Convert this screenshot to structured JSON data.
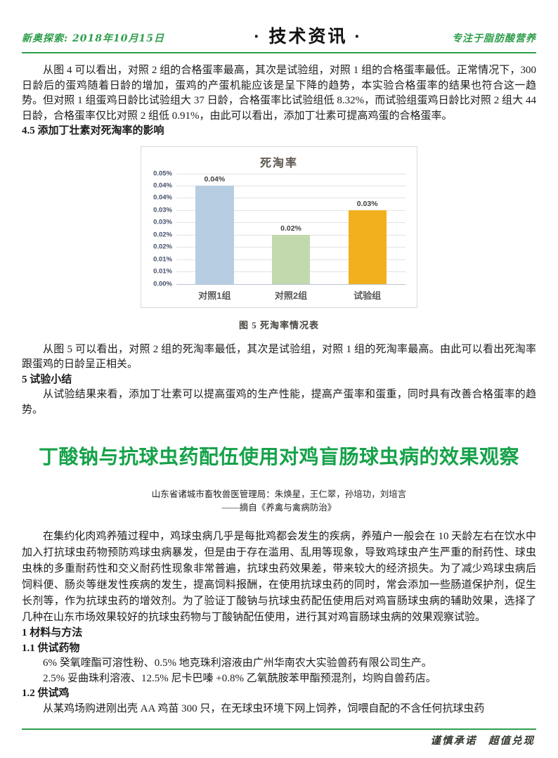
{
  "header": {
    "left": "新奥探索: 2018年10月15日",
    "center": "· 技术资讯 ·",
    "right": "专注于脂肪酸营养"
  },
  "article1": {
    "para_fig4": "从图 4 可以看出，对照 2 组的合格蛋率最高，其次是试验组，对照 1 组的合格蛋率最低。正常情况下，300 日龄后的蛋鸡随着日龄的增加，蛋鸡的产蛋机能应该是呈下降的趋势，本实验合格蛋率的结果也符合这一趋势。但对照 1 组蛋鸡日龄比试验组大 37 日龄，合格蛋率比试验组低 8.32%，而试验组蛋鸡日龄比对照 2 组大 44 日龄，合格蛋率仅比对照 2 组低 0.91%，由此可以看出，添加丁壮素可提高鸡蛋的合格蛋率。",
    "heading_45": "4.5 添加丁壮素对死淘率的影响",
    "caption_fig5": "图 5 死淘率情况表",
    "para_fig5": "从图 5 可以看出，对照 2 组的死淘率最低，其次是试验组，对照 1 组的死淘率最高。由此可以看出死淘率跟蛋鸡的日龄呈正相关。",
    "heading_5": "5 试验小结",
    "para_summary": "从试验结果来看，添加丁壮素可以提高蛋鸡的生产性能，提高产蛋率和蛋重，同时具有改善合格蛋率的趋势。"
  },
  "chart_data": {
    "type": "bar",
    "title": "死淘率",
    "categories": [
      "对照1组",
      "对照2组",
      "试验组"
    ],
    "values": [
      0.04,
      0.02,
      0.03
    ],
    "value_labels": [
      "0.04%",
      "0.02%",
      "0.03%"
    ],
    "bar_colors": [
      "#b7cde2",
      "#c2d8ad",
      "#f2b01e"
    ],
    "y_ticks_top_to_bottom": [
      "0.05%",
      "0.04%",
      "0.04%",
      "0.03%",
      "0.03%",
      "0.02%",
      "0.02%",
      "0.01%",
      "0.01%",
      "0.00%"
    ],
    "ylim": [
      0,
      0.045
    ],
    "grid": true,
    "legend": "none",
    "xlabel": "",
    "ylabel": ""
  },
  "article2": {
    "title": "丁酸钠与抗球虫药配伍使用对鸡盲肠球虫病的效果观察",
    "byline1": "山东省诸城市畜牧兽医管理局：朱焕星，王仁翠，孙培功，刘培言",
    "byline2": "——摘自《养禽与禽病防治》",
    "intro": "在集约化肉鸡养殖过程中，鸡球虫病几乎是每批鸡都会发生的疾病，养殖户一般会在 10 天龄左右在饮水中加入打抗球虫药物预防鸡球虫病暴发，但是由于存在滥用、乱用等现象，导致鸡球虫产生严重的耐药性、球虫虫株的多重耐药性和交义耐药性现象非常普遍，抗球虫药效果差，带来较大的经济损失。为了减少鸡球虫病后饲料便、肠炎等继发性疾病的发生，提高饲料报酬，在使用抗球虫药的同时，常会添加一些肠道保护剂，促生长剂等，作为抗球虫药的增效剂。为了验证丁酸钠与抗球虫药配伍使用后对鸡盲肠球虫病的辅助效果，选择了几种在山东市场效果较好的抗球虫药物与丁酸钠配伍使用，进行其对鸡盲肠球虫病的效果观察试验。",
    "heading_1": "1 材料与方法",
    "heading_11": "1.1 供试药物",
    "drug_line1": "6% 癸氧喹酯可溶性粉、0.5% 地克珠利溶液由广州华南农大实验兽药有限公司生产。",
    "drug_line2": "2.5% 妥曲珠利溶液、12.5% 尼卡巴嗪 +0.8% 乙氧酰胺苯甲酯预混剂，均购自兽药店。",
    "heading_12": "1.2 供试鸡",
    "chicken_line": "从某鸡场购进刚出壳 AA 鸡苗 300 只，在无球虫环境下网上饲养，饲喂自配的不含任何抗球虫药"
  },
  "footer": {
    "slogan": "谨慎承诺　超值兑现"
  },
  "colors": {
    "brand_green": "#2f9e4a",
    "title_green": "#16a24a",
    "bar_blue": "#b7cde2",
    "bar_green": "#c2d8ad",
    "bar_yellow": "#f2b01e"
  }
}
